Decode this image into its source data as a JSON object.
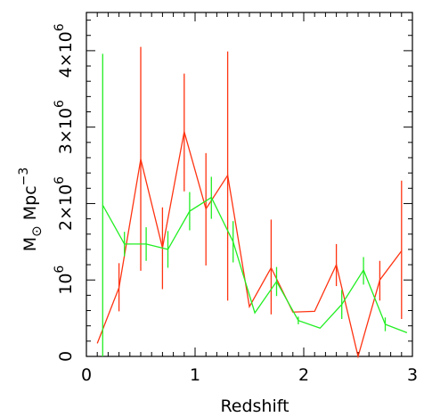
{
  "chart_data": {
    "type": "line",
    "title": "",
    "xlabel": "Redshift",
    "ylabel": {
      "main": "M",
      "subscript": "⊙",
      "unit": " Mpc",
      "exponent": "−3"
    },
    "xlim": [
      0,
      3
    ],
    "ylim": [
      0,
      4500000
    ],
    "xticks": [
      0,
      1,
      2,
      3
    ],
    "yticks": [
      0,
      1000000,
      2000000,
      3000000,
      4000000
    ],
    "ytick_labels": [
      {
        "main": "0",
        "exp": ""
      },
      {
        "main": "10",
        "exp": "6"
      },
      {
        "main": "2×10",
        "exp": "6"
      },
      {
        "main": "3×10",
        "exp": "6"
      },
      {
        "main": "4×10",
        "exp": "6"
      }
    ],
    "grid": false,
    "series": [
      {
        "color": "#ff3311",
        "x": [
          0.1,
          0.3,
          0.5,
          0.7,
          0.9,
          1.1,
          1.3,
          1.5,
          1.7,
          1.9,
          2.1,
          2.3,
          2.5,
          2.7,
          2.9
        ],
        "y": [
          170000,
          900000,
          2580000,
          1420000,
          2940000,
          1930000,
          2370000,
          650000,
          1160000,
          580000,
          590000,
          1200000,
          0,
          1000000,
          1380000
        ],
        "err_low": [
          0,
          590000,
          1120000,
          880000,
          2160000,
          1190000,
          730000,
          0,
          550000,
          0,
          0,
          920000,
          0,
          730000,
          490000
        ],
        "err_high": [
          0,
          1220000,
          4050000,
          1950000,
          3700000,
          2660000,
          3990000,
          0,
          1790000,
          0,
          0,
          1470000,
          0,
          1250000,
          2300000
        ]
      },
      {
        "color": "#22ee22",
        "x": [
          0.15,
          0.35,
          0.55,
          0.75,
          0.95,
          1.15,
          1.35,
          1.55,
          1.75,
          1.95,
          2.15,
          2.35,
          2.55,
          2.75,
          2.95
        ],
        "y": [
          1980000,
          1470000,
          1470000,
          1400000,
          1900000,
          2080000,
          1500000,
          570000,
          980000,
          470000,
          370000,
          680000,
          1130000,
          420000,
          310000
        ],
        "err_low": [
          0,
          1310000,
          1250000,
          1160000,
          1650000,
          1800000,
          1230000,
          0,
          790000,
          420000,
          0,
          490000,
          940000,
          330000,
          0
        ],
        "err_high": [
          3960000,
          1630000,
          1690000,
          1640000,
          2150000,
          2350000,
          1770000,
          0,
          1170000,
          520000,
          0,
          870000,
          1300000,
          510000,
          0
        ]
      }
    ]
  }
}
